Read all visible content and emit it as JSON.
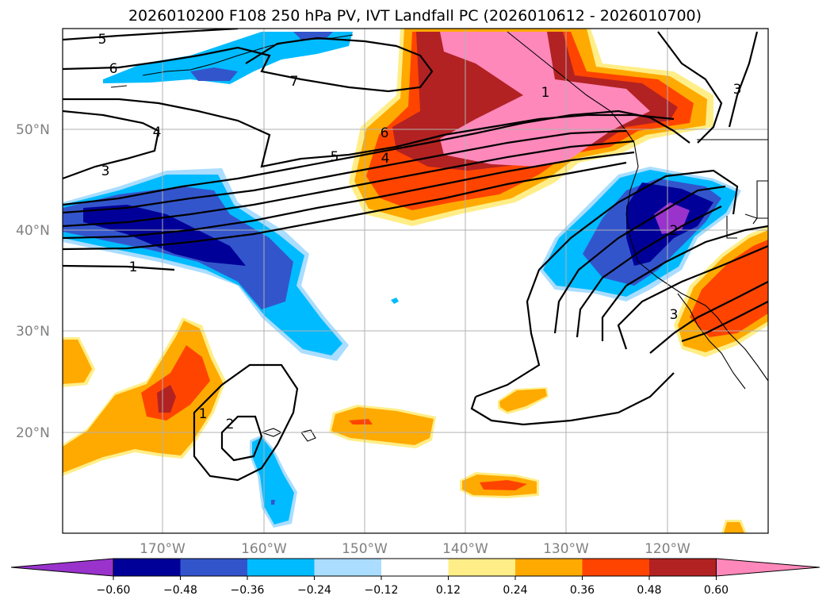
{
  "title": "2026010200 F108 250 hPa PV, IVT Landfall PC (2026010612 - 2026010700)",
  "lat_labels": [
    "50°N",
    "40°N",
    "30°N",
    "20°N"
  ],
  "lon_labels": [
    "170°W",
    "160°W",
    "150°W",
    "140°W",
    "130°W",
    "120°W"
  ],
  "colorbar": {
    "ticks": [
      "−0.60",
      "−0.48",
      "−0.36",
      "−0.24",
      "−0.12",
      "0.12",
      "0.24",
      "0.36",
      "0.48",
      "0.60"
    ],
    "colors": [
      "#9933cc",
      "#000099",
      "#3355cc",
      "#00bbff",
      "#aaddff",
      "#ffffff",
      "#ffee88",
      "#ffaa00",
      "#ff4400",
      "#b22222",
      "#ff88bb"
    ]
  },
  "contour_labels": [
    "5",
    "6",
    "7",
    "4",
    "3",
    "6",
    "5",
    "4",
    "1",
    "3",
    "1",
    "2",
    "3",
    "2",
    "1"
  ],
  "colors": {
    "purple": "#9933cc",
    "navy": "#000099",
    "blue": "#3355cc",
    "cyan": "#00bbff",
    "lightblue": "#aaddff",
    "lightyellow": "#ffee88",
    "orange": "#ffaa00",
    "redorange": "#ff4400",
    "darkred": "#b22222",
    "pink": "#ff88bb"
  }
}
